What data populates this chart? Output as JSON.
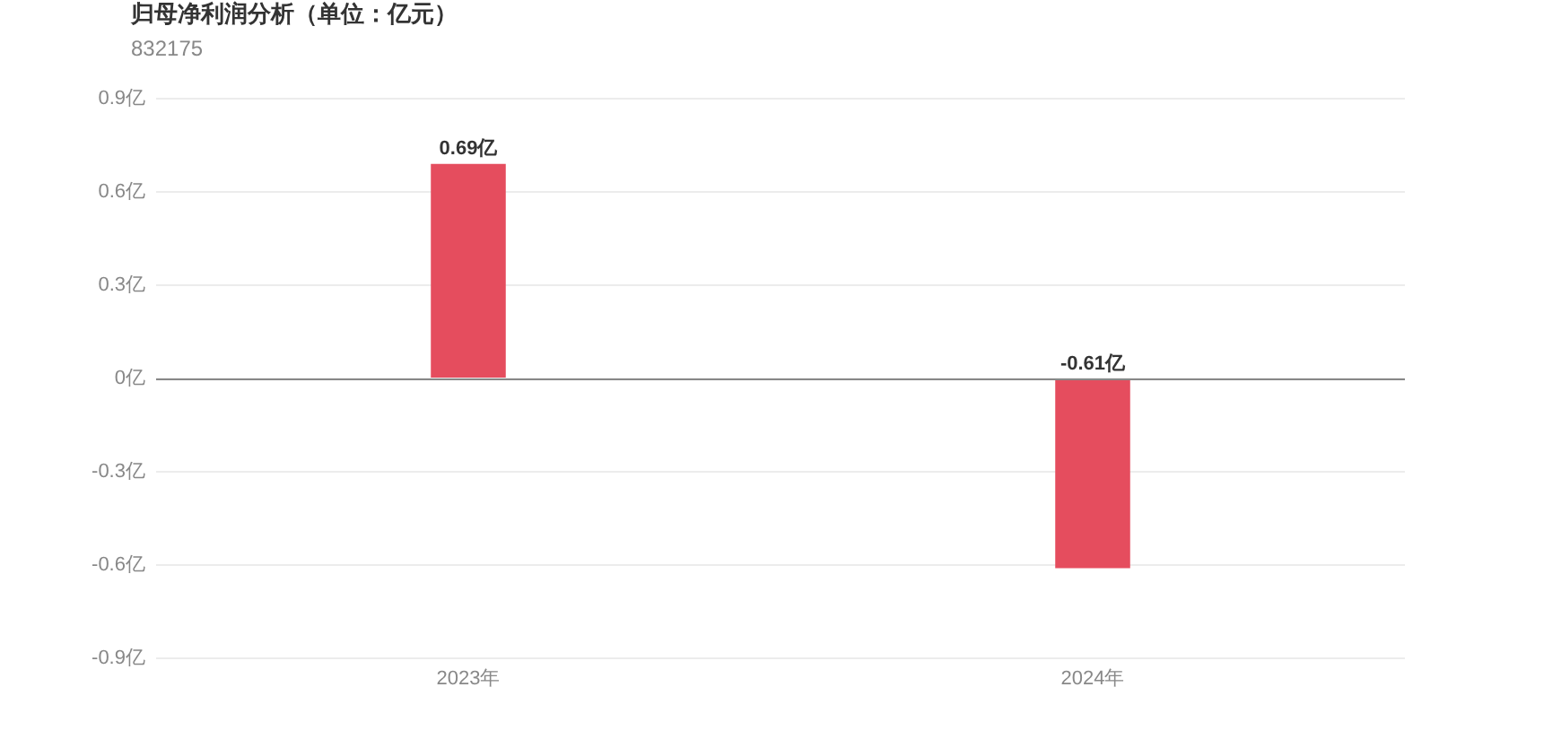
{
  "chart_data": {
    "type": "bar",
    "title": "归母净利润分析（单位：亿元）",
    "subtitle": "832175",
    "categories": [
      "2023年",
      "2024年"
    ],
    "values": [
      0.69,
      -0.61
    ],
    "color": "#e54d5e",
    "value_labels": [
      "0.69亿",
      "-0.61亿"
    ],
    "ylim": [
      -0.9,
      0.9
    ],
    "yticks": [
      {
        "value": -0.9,
        "label": "-0.9亿"
      },
      {
        "value": -0.6,
        "label": "-0.6亿"
      },
      {
        "value": -0.3,
        "label": "-0.3亿"
      },
      {
        "value": 0,
        "label": "0亿"
      },
      {
        "value": 0.3,
        "label": "0.3亿"
      },
      {
        "value": 0.6,
        "label": "0.6亿"
      },
      {
        "value": 0.9,
        "label": "0.9亿"
      }
    ],
    "grid": "y"
  }
}
